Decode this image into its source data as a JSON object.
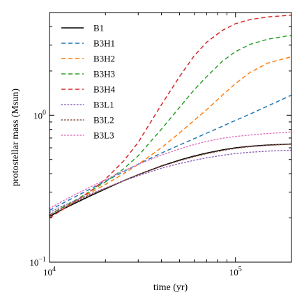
{
  "chart_data": {
    "type": "line",
    "title": "",
    "xlabel": "time (yr)",
    "ylabel": "protostellar mass (Msun)",
    "xscale": "log",
    "yscale": "log",
    "xlim": [
      10000,
      200000
    ],
    "ylim": [
      0.1,
      5.0
    ],
    "grid": false,
    "legend_position": "top-left",
    "x_tick_labels": [
      {
        "value": 10000,
        "base": "10",
        "exp": "4"
      },
      {
        "value": 100000,
        "base": "10",
        "exp": "5"
      }
    ],
    "y_tick_labels": [
      {
        "value": 0.1,
        "base": "10",
        "exp": "−1"
      },
      {
        "value": 1,
        "base": "10",
        "exp": "0"
      }
    ],
    "x": [
      10000,
      12000,
      14000,
      17000,
      20000,
      25000,
      30000,
      40000,
      50000,
      60000,
      70000,
      85000,
      100000,
      120000,
      150000,
      200000
    ],
    "series": [
      {
        "name": "B1",
        "color": "#000000",
        "style": "solid",
        "values": [
          0.205,
          0.232,
          0.255,
          0.287,
          0.315,
          0.358,
          0.394,
          0.452,
          0.495,
          0.528,
          0.553,
          0.581,
          0.6,
          0.615,
          0.627,
          0.637
        ]
      },
      {
        "name": "B3H1",
        "color": "#1f77b4",
        "style": "dashed",
        "values": [
          0.225,
          0.255,
          0.282,
          0.32,
          0.356,
          0.413,
          0.465,
          0.553,
          0.627,
          0.693,
          0.755,
          0.841,
          0.922,
          1.02,
          1.16,
          1.37
        ]
      },
      {
        "name": "B3H2",
        "color": "#ff7f0e",
        "style": "dashed",
        "values": [
          0.21,
          0.238,
          0.264,
          0.302,
          0.338,
          0.4,
          0.463,
          0.602,
          0.757,
          0.923,
          1.09,
          1.37,
          1.64,
          1.96,
          2.27,
          2.5
        ]
      },
      {
        "name": "B3H3",
        "color": "#2ca02c",
        "style": "dashed",
        "values": [
          0.21,
          0.24,
          0.267,
          0.31,
          0.352,
          0.431,
          0.53,
          0.804,
          1.13,
          1.49,
          1.83,
          2.33,
          2.71,
          3.04,
          3.3,
          3.5
        ]
      },
      {
        "name": "B3H4",
        "color": "#d62728",
        "style": "dashed",
        "values": [
          0.2,
          0.232,
          0.263,
          0.311,
          0.368,
          0.487,
          0.654,
          1.18,
          1.83,
          2.54,
          3.14,
          3.78,
          4.2,
          4.48,
          4.67,
          4.8
        ]
      },
      {
        "name": "B3L1",
        "color": "#9467bd",
        "style": "dotted",
        "values": [
          0.218,
          0.244,
          0.265,
          0.294,
          0.32,
          0.357,
          0.388,
          0.436,
          0.469,
          0.494,
          0.513,
          0.534,
          0.549,
          0.56,
          0.57,
          0.578
        ]
      },
      {
        "name": "B3L2",
        "color": "#8c564b",
        "style": "dotted",
        "values": [
          0.21,
          0.237,
          0.26,
          0.291,
          0.318,
          0.359,
          0.393,
          0.449,
          0.49,
          0.522,
          0.547,
          0.575,
          0.595,
          0.611,
          0.624,
          0.635
        ]
      },
      {
        "name": "B3L3",
        "color": "#e377c2",
        "style": "dotted",
        "values": [
          0.232,
          0.264,
          0.292,
          0.33,
          0.364,
          0.418,
          0.463,
          0.536,
          0.59,
          0.632,
          0.664,
          0.697,
          0.717,
          0.734,
          0.751,
          0.77
        ]
      }
    ]
  }
}
